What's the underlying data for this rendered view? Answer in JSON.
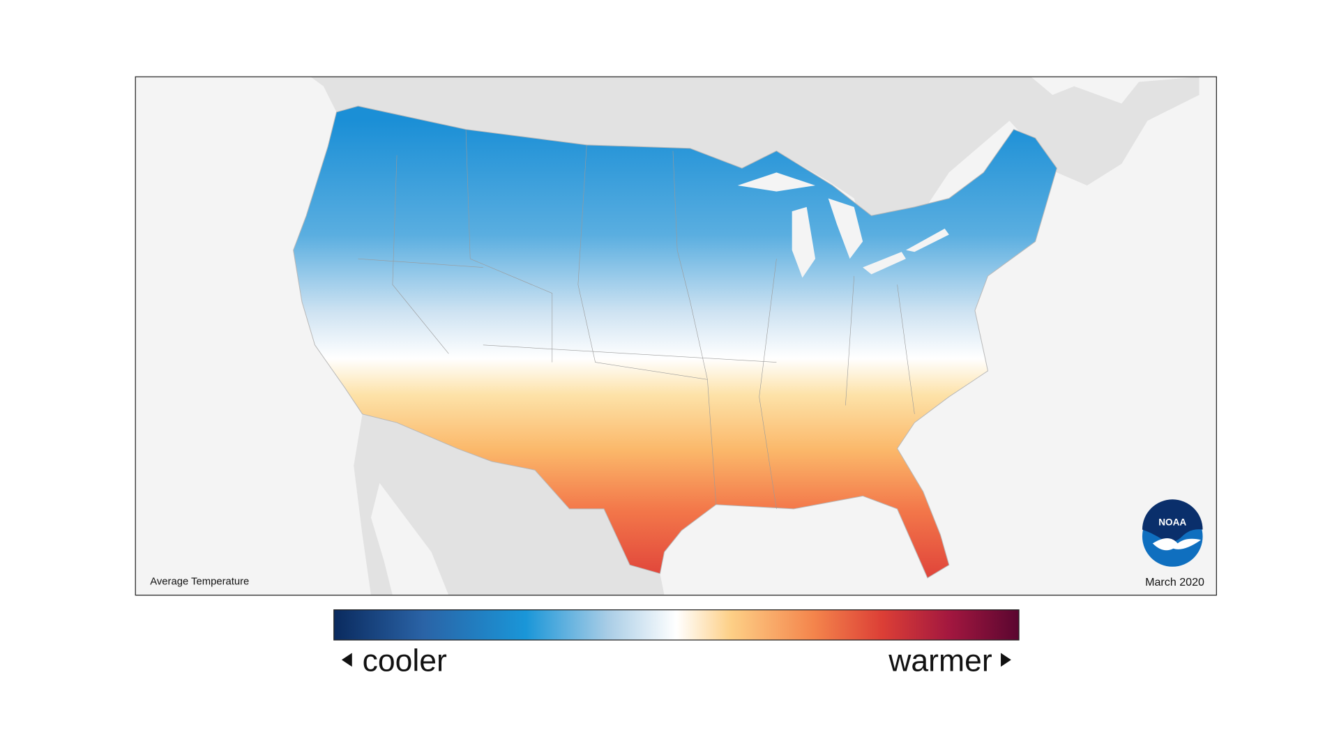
{
  "map": {
    "label": "Average Temperature",
    "date": "March 2020",
    "logo": "NOAA"
  },
  "legend": {
    "low_label": "cooler",
    "high_label": "warmer"
  }
}
